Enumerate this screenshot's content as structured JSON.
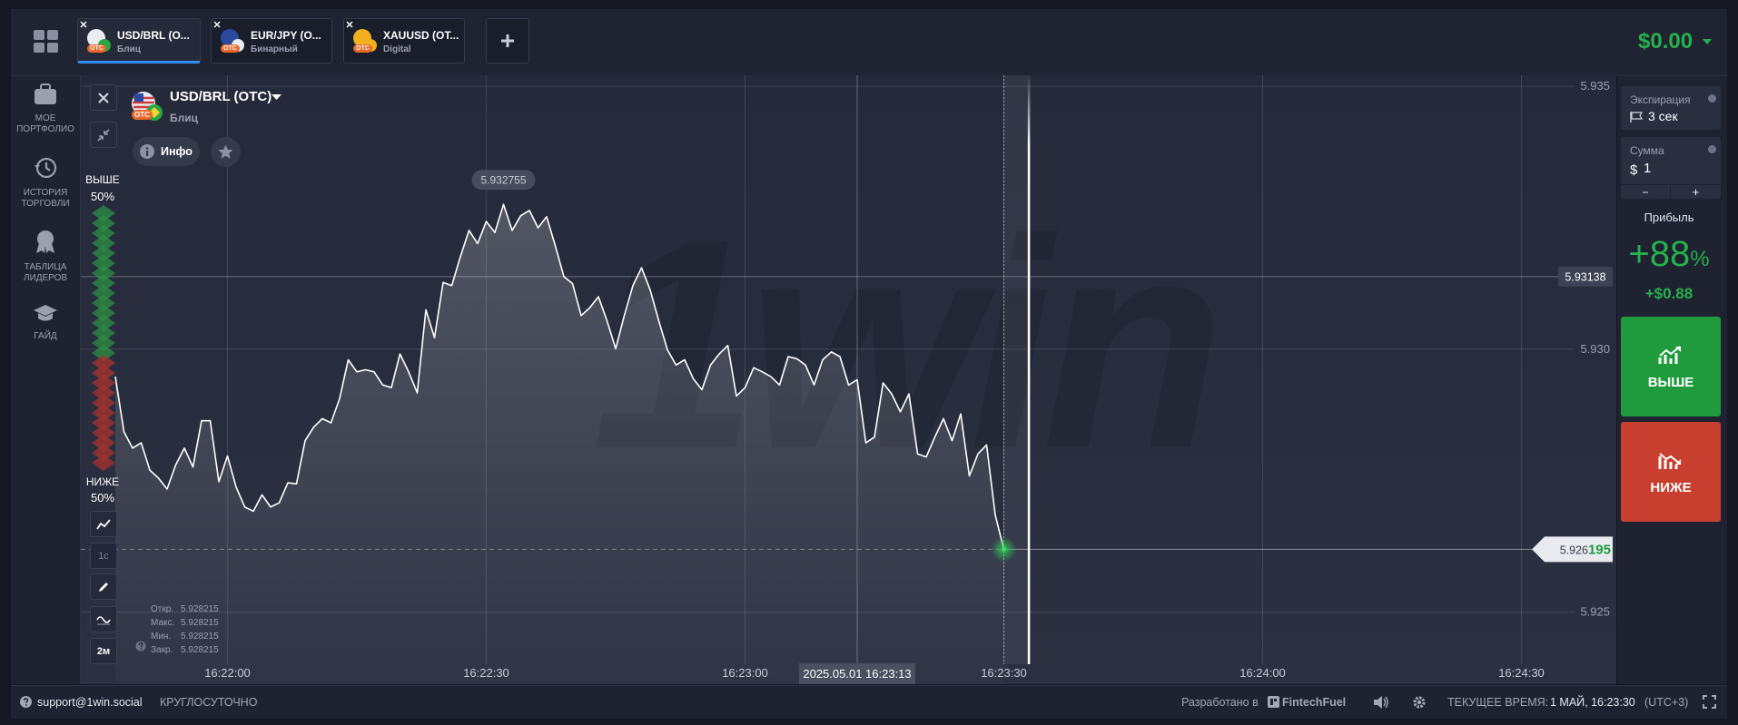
{
  "tabs": [
    {
      "symbol": "USD/BRL (O...",
      "mode": "Блиц",
      "badge": "OTC"
    },
    {
      "symbol": "EUR/JPY (O...",
      "mode": "Бинарный",
      "badge": "OTC"
    },
    {
      "symbol": "XAUUSD (OT...",
      "mode": "Digital",
      "badge": "OTC"
    }
  ],
  "balance": "$0.00",
  "sidebar": [
    {
      "label": "МОЕ\nПОРТФОЛИО"
    },
    {
      "label": "ИСТОРИЯ\nТОРГОВЛИ"
    },
    {
      "label": "ТАБЛИЦА\nЛИДЕРОВ"
    },
    {
      "label": "ГАЙД"
    }
  ],
  "asset": {
    "name": "USD/BRL (OTC)",
    "mode": "Блиц",
    "badge": "OTC",
    "info": "Инфо"
  },
  "sentiment": {
    "up_label": "ВЫШЕ",
    "up": "50%",
    "down_label": "НИЖЕ",
    "down": "50%"
  },
  "tools": {
    "interval": "1с",
    "timeframe": "2м"
  },
  "ohlc": [
    {
      "label": "Откр.",
      "value": "5.928215"
    },
    {
      "label": "Макс.",
      "value": "5.928215"
    },
    {
      "label": "Мин.",
      "value": "5.928215"
    },
    {
      "label": "Закр.",
      "value": "5.928215"
    }
  ],
  "chart_data": {
    "type": "line",
    "watermark": "1win",
    "color": "#ffffff",
    "grid": true,
    "x": [
      "16:21:47",
      "16:21:48",
      "16:21:49",
      "16:21:50",
      "16:21:51",
      "16:21:52",
      "16:21:53",
      "16:21:54",
      "16:21:55",
      "16:21:56",
      "16:21:57",
      "16:21:58",
      "16:21:59",
      "16:22:00",
      "16:22:01",
      "16:22:02",
      "16:22:03",
      "16:22:04",
      "16:22:05",
      "16:22:06",
      "16:22:07",
      "16:22:08",
      "16:22:09",
      "16:22:10",
      "16:22:11",
      "16:22:12",
      "16:22:13",
      "16:22:14",
      "16:22:15",
      "16:22:16",
      "16:22:17",
      "16:22:18",
      "16:22:19",
      "16:22:20",
      "16:22:21",
      "16:22:22",
      "16:22:23",
      "16:22:24",
      "16:22:25",
      "16:22:26",
      "16:22:27",
      "16:22:28",
      "16:22:29",
      "16:22:30",
      "16:22:31",
      "16:22:32",
      "16:22:33",
      "16:22:34",
      "16:22:35",
      "16:22:36",
      "16:22:37",
      "16:22:38",
      "16:22:39",
      "16:22:40",
      "16:22:41",
      "16:22:42",
      "16:22:43",
      "16:22:44",
      "16:22:45",
      "16:22:46",
      "16:22:47",
      "16:22:48",
      "16:22:49",
      "16:22:50",
      "16:22:51",
      "16:22:52",
      "16:22:53",
      "16:22:54",
      "16:22:55",
      "16:22:56",
      "16:22:57",
      "16:22:58",
      "16:22:59",
      "16:23:00",
      "16:23:01",
      "16:23:02",
      "16:23:03",
      "16:23:04",
      "16:23:05",
      "16:23:06",
      "16:23:07",
      "16:23:08",
      "16:23:09",
      "16:23:10",
      "16:23:11",
      "16:23:12",
      "16:23:13",
      "16:23:14",
      "16:23:15",
      "16:23:16",
      "16:23:17",
      "16:23:18",
      "16:23:19",
      "16:23:20",
      "16:23:21",
      "16:23:22",
      "16:23:23",
      "16:23:24",
      "16:23:25",
      "16:23:26",
      "16:23:27",
      "16:23:28",
      "16:23:29",
      "16:23:30"
    ],
    "values": [
      5.92948,
      5.92843,
      5.92812,
      5.92822,
      5.9277,
      5.92755,
      5.92734,
      5.9278,
      5.92812,
      5.92776,
      5.92864,
      5.92864,
      5.92748,
      5.92797,
      5.92738,
      5.927,
      5.92692,
      5.92723,
      5.927,
      5.92708,
      5.92746,
      5.92744,
      5.92826,
      5.92852,
      5.92868,
      5.9286,
      5.92906,
      5.9298,
      5.92957,
      5.92961,
      5.92957,
      5.92932,
      5.92927,
      5.92991,
      5.92957,
      5.92917,
      5.93075,
      5.93022,
      5.93127,
      5.93121,
      5.93176,
      5.93226,
      5.93201,
      5.93243,
      5.93222,
      5.932755,
      5.93226,
      5.93254,
      5.93264,
      5.93231,
      5.93252,
      5.93197,
      5.93138,
      5.93125,
      5.93064,
      5.93079,
      5.931,
      5.93054,
      5.93001,
      5.93064,
      5.93121,
      5.93155,
      5.93113,
      5.93054,
      5.92999,
      5.9297,
      5.9298,
      5.92944,
      5.92923,
      5.9297,
      5.92991,
      5.93007,
      5.92911,
      5.92927,
      5.92965,
      5.92957,
      5.92948,
      5.92932,
      5.92986,
      5.92982,
      5.9297,
      5.92932,
      5.9298,
      5.92995,
      5.92986,
      5.92932,
      5.92942,
      5.92822,
      5.92833,
      5.92936,
      5.92915,
      5.92881,
      5.92915,
      5.92801,
      5.92795,
      5.92833,
      5.92868,
      5.92826,
      5.92877,
      5.92759,
      5.92801,
      5.92818,
      5.92685,
      5.926195
    ],
    "xlim": [
      "16:21:43",
      "16:24:41"
    ],
    "xticks": [
      "16:22:00",
      "16:22:30",
      "16:23:00",
      "16:23:30",
      "16:24:00",
      "16:24:30"
    ],
    "ylim": [
      5.92363,
      5.93521
    ],
    "yticks": [
      5.925,
      {
        "value": 5.93,
        "label": "5.930"
      },
      5.935
    ],
    "max_point": 5.932755,
    "crosshair_price": 5.93138,
    "crosshair_time": "2025.05.01 16:23:13",
    "current_price": 5.926195,
    "current_price_label": [
      "5.926",
      "195"
    ]
  },
  "trade_panel": {
    "expiration_label": "Экспирация",
    "expiration": "3 сек",
    "amount_label": "Сумма",
    "currency": "$",
    "amount": "1",
    "minus": "−",
    "plus": "+",
    "profit_label": "Прибыль",
    "profit_percent": "+88",
    "profit_unit": "%",
    "profit_amount": "+$0.88",
    "up": "ВЫШЕ",
    "down": "НИЖЕ"
  },
  "footer": {
    "support": "support@1win.social",
    "hours": "КРУГЛОСУТОЧНО",
    "developed": "Разработано в",
    "developer": "FintechFuel",
    "time_label": "ТЕКУЩЕЕ ВРЕМЯ:",
    "time": "1 МАЙ, 16:23:30",
    "timezone": "(UTC+3)"
  }
}
